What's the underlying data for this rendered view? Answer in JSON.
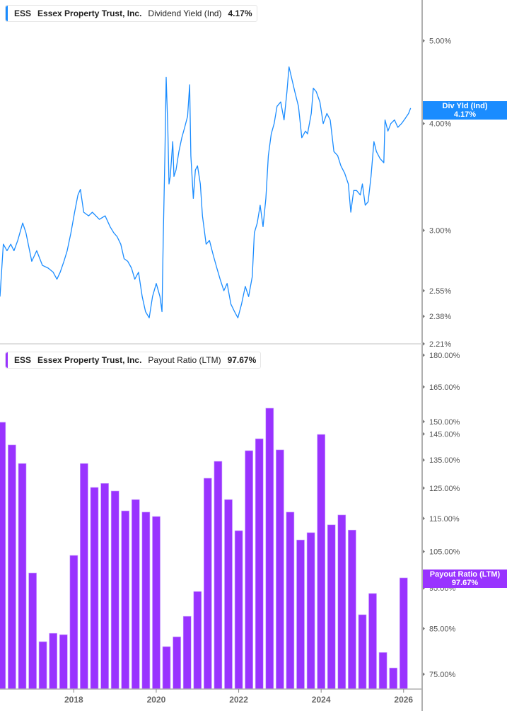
{
  "colors": {
    "yield": "#1a8cff",
    "payout": "#9933ff",
    "axis": "#b0b0b0",
    "tick_text": "#555555"
  },
  "top_legend": {
    "ticker": "ESS",
    "company": "Essex Property Trust, Inc.",
    "metric": "Dividend Yield (Ind)",
    "value": "4.17%"
  },
  "bottom_legend": {
    "ticker": "ESS",
    "company": "Essex Property Trust, Inc.",
    "metric": "Payout Ratio (LTM)",
    "value": "97.67%"
  },
  "top_tag": {
    "label": "Div Yld (Ind)",
    "value": "4.17%"
  },
  "bottom_tag": {
    "label": "Payout Ratio (LTM)",
    "value": "97.67%"
  },
  "chart_data": [
    {
      "type": "line",
      "series_name": "Dividend Yield (Ind)",
      "y_scale": "log",
      "ylim": [
        2.21,
        5.58
      ],
      "xlim": [
        2016.21,
        2026.45
      ],
      "yticks": [
        {
          "v": 5.0,
          "label": "5.00%"
        },
        {
          "v": 4.0,
          "label": "4.00%"
        },
        {
          "v": 3.0,
          "label": "3.00%"
        },
        {
          "v": 2.55,
          "label": "2.55%"
        },
        {
          "v": 2.38,
          "label": "2.38%"
        },
        {
          "v": 2.21,
          "label": "2.21%"
        }
      ],
      "x": [
        2016.21,
        2016.29,
        2016.38,
        2016.47,
        2016.55,
        2016.64,
        2016.76,
        2016.84,
        2016.98,
        2017.1,
        2017.24,
        2017.38,
        2017.5,
        2017.59,
        2017.67,
        2017.76,
        2017.84,
        2017.93,
        2018.02,
        2018.1,
        2018.16,
        2018.24,
        2018.36,
        2018.45,
        2018.62,
        2018.76,
        2018.88,
        2018.97,
        2019.05,
        2019.14,
        2019.22,
        2019.31,
        2019.4,
        2019.48,
        2019.57,
        2019.66,
        2019.74,
        2019.83,
        2019.91,
        2020.0,
        2020.09,
        2020.14,
        2020.17,
        2020.21,
        2020.24,
        2020.28,
        2020.31,
        2020.34,
        2020.4,
        2020.43,
        2020.48,
        2020.55,
        2020.62,
        2020.69,
        2020.76,
        2020.81,
        2020.84,
        2020.9,
        2020.95,
        2021.0,
        2021.07,
        2021.12,
        2021.21,
        2021.29,
        2021.38,
        2021.47,
        2021.55,
        2021.64,
        2021.72,
        2021.81,
        2021.9,
        2021.98,
        2022.07,
        2022.16,
        2022.24,
        2022.33,
        2022.38,
        2022.45,
        2022.52,
        2022.59,
        2022.66,
        2022.72,
        2022.79,
        2022.86,
        2022.93,
        2023.02,
        2023.1,
        2023.17,
        2023.22,
        2023.28,
        2023.36,
        2023.45,
        2023.53,
        2023.62,
        2023.67,
        2023.76,
        2023.81,
        2023.88,
        2023.97,
        2024.05,
        2024.14,
        2024.22,
        2024.31,
        2024.4,
        2024.48,
        2024.57,
        2024.66,
        2024.72,
        2024.79,
        2024.86,
        2024.95,
        2025.0,
        2025.07,
        2025.14,
        2025.21,
        2025.28,
        2025.34,
        2025.43,
        2025.52,
        2025.55,
        2025.62,
        2025.69,
        2025.78,
        2025.86,
        2025.95,
        2026.03,
        2026.12,
        2026.17
      ],
      "y": [
        2.51,
        2.89,
        2.84,
        2.89,
        2.84,
        2.92,
        3.06,
        2.98,
        2.76,
        2.84,
        2.73,
        2.71,
        2.68,
        2.63,
        2.68,
        2.76,
        2.84,
        2.98,
        3.15,
        3.3,
        3.35,
        3.15,
        3.12,
        3.15,
        3.09,
        3.12,
        3.03,
        2.98,
        2.95,
        2.89,
        2.78,
        2.76,
        2.71,
        2.63,
        2.68,
        2.51,
        2.41,
        2.37,
        2.51,
        2.6,
        2.51,
        2.41,
        2.95,
        3.67,
        4.53,
        3.96,
        3.4,
        3.47,
        3.81,
        3.47,
        3.53,
        3.71,
        3.85,
        3.96,
        4.08,
        4.44,
        3.67,
        3.27,
        3.53,
        3.57,
        3.4,
        3.12,
        2.89,
        2.92,
        2.81,
        2.71,
        2.63,
        2.55,
        2.6,
        2.46,
        2.41,
        2.37,
        2.46,
        2.58,
        2.51,
        2.65,
        2.98,
        3.06,
        3.21,
        3.03,
        3.27,
        3.67,
        3.89,
        4.0,
        4.19,
        4.24,
        4.04,
        4.36,
        4.66,
        4.53,
        4.36,
        4.19,
        3.85,
        3.92,
        3.89,
        4.11,
        4.4,
        4.36,
        4.24,
        4.0,
        4.11,
        4.04,
        3.71,
        3.67,
        3.57,
        3.5,
        3.4,
        3.15,
        3.34,
        3.34,
        3.3,
        3.4,
        3.21,
        3.24,
        3.47,
        3.81,
        3.71,
        3.64,
        3.6,
        4.04,
        3.92,
        4.0,
        4.04,
        3.96,
        4.0,
        4.05,
        4.11,
        4.17
      ]
    },
    {
      "type": "bar",
      "series_name": "Payout Ratio (LTM)",
      "y_scale": "log",
      "ylim": [
        72,
        180
      ],
      "xlim": [
        2016.21,
        2026.45
      ],
      "yticks": [
        {
          "v": 180,
          "label": "180.00%"
        },
        {
          "v": 165,
          "label": "165.00%"
        },
        {
          "v": 150,
          "label": "150.00%"
        },
        {
          "v": 145,
          "label": "145.00%"
        },
        {
          "v": 135,
          "label": "135.00%"
        },
        {
          "v": 125,
          "label": "125.00%"
        },
        {
          "v": 115,
          "label": "115.00%"
        },
        {
          "v": 105,
          "label": "105.00%"
        },
        {
          "v": 95,
          "label": "95.00%"
        },
        {
          "v": 85,
          "label": "85.00%"
        },
        {
          "v": 75,
          "label": "75.00%"
        }
      ],
      "xticks": [
        {
          "v": 2018,
          "label": "2018"
        },
        {
          "v": 2020,
          "label": "2020"
        },
        {
          "v": 2022,
          "label": "2022"
        },
        {
          "v": 2024,
          "label": "2024"
        },
        {
          "v": 2026,
          "label": "2026"
        }
      ],
      "x": [
        2016.25,
        2016.5,
        2016.75,
        2017.0,
        2017.25,
        2017.5,
        2017.75,
        2018.0,
        2018.25,
        2018.5,
        2018.75,
        2019.0,
        2019.25,
        2019.5,
        2019.75,
        2020.0,
        2020.25,
        2020.5,
        2020.75,
        2021.0,
        2021.25,
        2021.5,
        2021.75,
        2022.0,
        2022.25,
        2022.5,
        2022.75,
        2023.0,
        2023.25,
        2023.5,
        2023.75,
        2024.0,
        2024.25,
        2024.5,
        2024.75,
        2025.0,
        2025.25,
        2025.5,
        2025.75,
        2026.0
      ],
      "values": [
        149.7,
        140.7,
        133.7,
        99.0,
        82.0,
        83.9,
        83.6,
        103.9,
        133.7,
        125.2,
        126.6,
        124.0,
        117.4,
        121.1,
        117.0,
        115.6,
        80.9,
        83.1,
        87.9,
        94.1,
        128.4,
        134.5,
        121.1,
        111.2,
        138.5,
        143.1,
        155.6,
        138.8,
        117.0,
        108.4,
        110.6,
        144.8,
        113.0,
        116.1,
        111.4,
        88.3,
        93.6,
        79.6,
        76.3,
        97.67
      ]
    }
  ]
}
